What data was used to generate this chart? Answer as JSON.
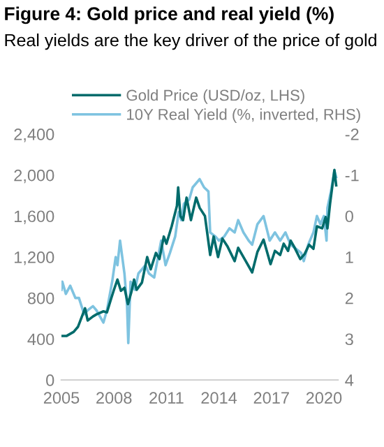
{
  "chart_data": {
    "type": "line",
    "title": "Figure 4: Gold price and real yield (%)",
    "subtitle": "Real yields are the key driver of the price of gold",
    "series": [
      {
        "name": "Gold Price (USD/oz, LHS)",
        "color": "#006b6b",
        "x": [
          2005.0,
          2005.3,
          2005.7,
          2005.95,
          2006.35,
          2006.5,
          2006.8,
          2007.0,
          2007.4,
          2007.6,
          2007.85,
          2008.0,
          2008.2,
          2008.4,
          2008.6,
          2008.8,
          2009.0,
          2009.15,
          2009.3,
          2009.6,
          2009.9,
          2010.1,
          2010.4,
          2010.6,
          2010.85,
          2011.0,
          2011.3,
          2011.6,
          2011.67,
          2011.8,
          2011.95,
          2012.15,
          2012.4,
          2012.7,
          2012.9,
          2013.2,
          2013.5,
          2013.7,
          2013.95,
          2014.2,
          2014.5,
          2014.9,
          2015.1,
          2015.5,
          2015.9,
          2016.2,
          2016.55,
          2016.95,
          2017.2,
          2017.5,
          2017.7,
          2017.95,
          2018.1,
          2018.3,
          2018.65,
          2018.9,
          2019.15,
          2019.4,
          2019.6,
          2019.9,
          2020.1,
          2020.2,
          2020.35,
          2020.6,
          2020.7
        ],
        "values": [
          430,
          430,
          470,
          520,
          700,
          580,
          620,
          640,
          670,
          660,
          800,
          880,
          980,
          870,
          900,
          740,
          860,
          980,
          880,
          950,
          1200,
          1080,
          1240,
          1180,
          1400,
          1330,
          1500,
          1700,
          1880,
          1600,
          1560,
          1780,
          1560,
          1780,
          1680,
          1600,
          1220,
          1400,
          1200,
          1380,
          1300,
          1160,
          1290,
          1170,
          1050,
          1250,
          1370,
          1130,
          1260,
          1220,
          1330,
          1260,
          1360,
          1300,
          1180,
          1230,
          1320,
          1280,
          1500,
          1480,
          1590,
          1480,
          1720,
          2050,
          1900
        ]
      },
      {
        "name": "10Y Real Yield (%, inverted, RHS)",
        "color": "#7ec3e0",
        "axis": "y2",
        "x": [
          2005.0,
          2005.05,
          2005.25,
          2005.5,
          2005.8,
          2006.0,
          2006.3,
          2006.5,
          2006.8,
          2007.0,
          2007.4,
          2007.6,
          2007.9,
          2008.1,
          2008.2,
          2008.35,
          2008.6,
          2008.75,
          2008.82,
          2008.95,
          2009.2,
          2009.4,
          2009.8,
          2010.0,
          2010.3,
          2010.7,
          2010.95,
          2011.2,
          2011.5,
          2011.7,
          2011.85,
          2012.0,
          2012.3,
          2012.5,
          2012.9,
          2013.15,
          2013.4,
          2013.5,
          2013.8,
          2014.0,
          2014.3,
          2014.6,
          2014.9,
          2015.1,
          2015.4,
          2015.7,
          2015.9,
          2016.2,
          2016.55,
          2016.9,
          2017.2,
          2017.5,
          2017.8,
          2018.1,
          2018.4,
          2018.7,
          2018.85,
          2019.1,
          2019.4,
          2019.6,
          2019.8,
          2020.0,
          2020.15,
          2020.2,
          2020.4,
          2020.6,
          2020.7
        ],
        "values": [
          1.8,
          1.6,
          1.9,
          1.7,
          2.0,
          2.0,
          2.4,
          2.3,
          2.2,
          2.3,
          2.6,
          2.3,
          1.6,
          1.0,
          1.2,
          0.6,
          1.4,
          2.2,
          3.1,
          1.6,
          1.8,
          1.4,
          1.2,
          1.4,
          1.5,
          0.6,
          1.2,
          0.9,
          0.5,
          -0.1,
          0.1,
          -0.3,
          -0.4,
          -0.7,
          -0.9,
          -0.7,
          -0.6,
          0.4,
          0.5,
          0.6,
          0.5,
          0.3,
          0.4,
          0.1,
          0.4,
          0.6,
          0.7,
          0.2,
          0.0,
          0.6,
          0.4,
          0.6,
          0.4,
          0.7,
          0.8,
          0.9,
          1.1,
          0.7,
          0.4,
          0.0,
          0.2,
          0.0,
          0.6,
          -0.2,
          -0.6,
          -1.1,
          -0.95
        ]
      }
    ],
    "xlim": [
      2005,
      2020.8
    ],
    "xticks": [
      2005,
      2008,
      2011,
      2014,
      2017,
      2020
    ],
    "ylim": [
      0,
      2400
    ],
    "yticks": [
      0,
      400,
      800,
      {
        "value": 1200,
        "label": "1,200"
      },
      {
        "value": 1600,
        "label": "1,600"
      },
      {
        "value": 2000,
        "label": "2,000"
      },
      {
        "value": 2400,
        "label": "2,400"
      }
    ],
    "y2lim": [
      4,
      -2
    ],
    "y2ticks": [
      -2,
      -1,
      0,
      1,
      2,
      3,
      4
    ],
    "grid": false,
    "legend": "top",
    "marker": "none",
    "line_style": "solid"
  }
}
